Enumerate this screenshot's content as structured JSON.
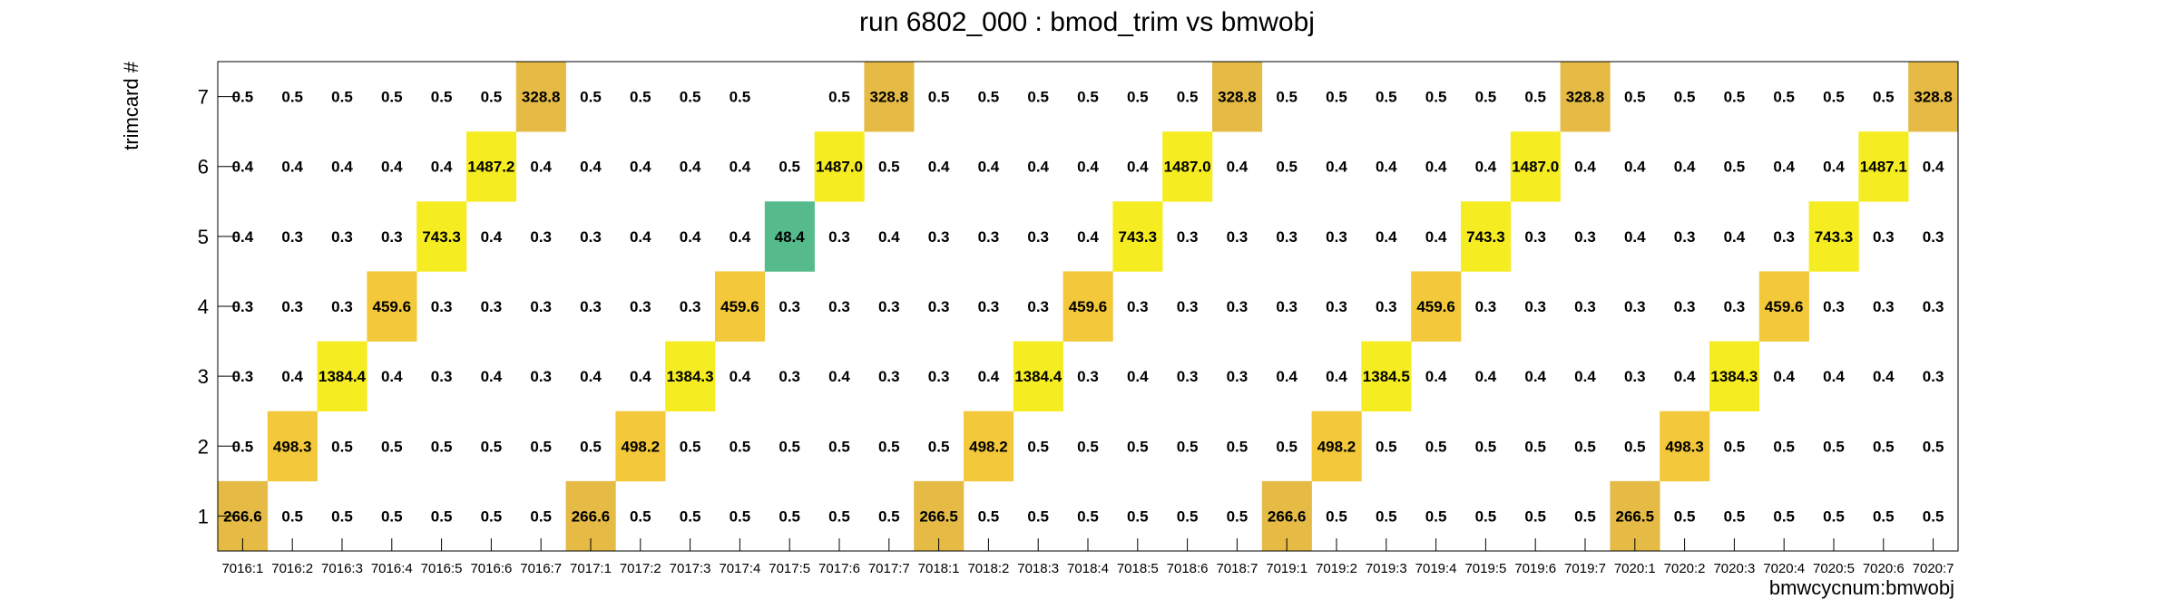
{
  "chart_data": {
    "type": "heatmap",
    "title": "run 6802_000 : bmod_trim vs bmwobj",
    "xlabel": "bmwcycnum:bmwobj",
    "ylabel": "trimcard #",
    "x_categories": [
      "7016:1",
      "7016:2",
      "7016:3",
      "7016:4",
      "7016:5",
      "7016:6",
      "7016:7",
      "7017:1",
      "7017:2",
      "7017:3",
      "7017:4",
      "7017:5",
      "7017:6",
      "7017:7",
      "7018:1",
      "7018:2",
      "7018:3",
      "7018:4",
      "7018:5",
      "7018:6",
      "7018:7",
      "7019:1",
      "7019:2",
      "7019:3",
      "7019:4",
      "7019:5",
      "7019:6",
      "7019:7",
      "7020:1",
      "7020:2",
      "7020:3",
      "7020:4",
      "7020:5",
      "7020:6",
      "7020:7"
    ],
    "y_categories": [
      "1",
      "2",
      "3",
      "4",
      "5",
      "6",
      "7"
    ],
    "values": [
      [
        "266.6",
        "0.5",
        "0.5",
        "0.5",
        "0.5",
        "0.5",
        "0.5",
        "266.6",
        "0.5",
        "0.5",
        "0.5",
        "0.5",
        "0.5",
        "0.5",
        "266.5",
        "0.5",
        "0.5",
        "0.5",
        "0.5",
        "0.5",
        "0.5",
        "266.6",
        "0.5",
        "0.5",
        "0.5",
        "0.5",
        "0.5",
        "0.5",
        "266.5",
        "0.5",
        "0.5",
        "0.5",
        "0.5",
        "0.5",
        "0.5"
      ],
      [
        "0.5",
        "498.3",
        "0.5",
        "0.5",
        "0.5",
        "0.5",
        "0.5",
        "0.5",
        "498.2",
        "0.5",
        "0.5",
        "0.5",
        "0.5",
        "0.5",
        "0.5",
        "498.2",
        "0.5",
        "0.5",
        "0.5",
        "0.5",
        "0.5",
        "0.5",
        "498.2",
        "0.5",
        "0.5",
        "0.5",
        "0.5",
        "0.5",
        "0.5",
        "498.3",
        "0.5",
        "0.5",
        "0.5",
        "0.5",
        "0.5"
      ],
      [
        "0.3",
        "0.4",
        "1384.4",
        "0.4",
        "0.3",
        "0.4",
        "0.3",
        "0.4",
        "0.4",
        "1384.3",
        "0.4",
        "0.3",
        "0.4",
        "0.3",
        "0.3",
        "0.4",
        "1384.4",
        "0.3",
        "0.4",
        "0.3",
        "0.3",
        "0.4",
        "0.4",
        "1384.5",
        "0.4",
        "0.4",
        "0.4",
        "0.4",
        "0.3",
        "0.4",
        "1384.3",
        "0.4",
        "0.4",
        "0.4",
        "0.3"
      ],
      [
        "0.3",
        "0.3",
        "0.3",
        "459.6",
        "0.3",
        "0.3",
        "0.3",
        "0.3",
        "0.3",
        "0.3",
        "459.6",
        "0.3",
        "0.3",
        "0.3",
        "0.3",
        "0.3",
        "0.3",
        "459.6",
        "0.3",
        "0.3",
        "0.3",
        "0.3",
        "0.3",
        "0.3",
        "459.6",
        "0.3",
        "0.3",
        "0.3",
        "0.3",
        "0.3",
        "0.3",
        "459.6",
        "0.3",
        "0.3",
        "0.3"
      ],
      [
        "0.4",
        "0.3",
        "0.3",
        "0.3",
        "743.3",
        "0.4",
        "0.3",
        "0.3",
        "0.4",
        "0.4",
        "0.4",
        "48.4",
        "0.3",
        "0.4",
        "0.3",
        "0.3",
        "0.3",
        "0.4",
        "743.3",
        "0.3",
        "0.3",
        "0.3",
        "0.3",
        "0.4",
        "0.4",
        "743.3",
        "0.3",
        "0.3",
        "0.4",
        "0.3",
        "0.4",
        "0.3",
        "743.3",
        "0.3",
        "0.3"
      ],
      [
        "0.4",
        "0.4",
        "0.4",
        "0.4",
        "0.4",
        "1487.2",
        "0.4",
        "0.4",
        "0.4",
        "0.4",
        "0.4",
        "0.5",
        "1487.0",
        "0.5",
        "0.4",
        "0.4",
        "0.4",
        "0.4",
        "0.4",
        "1487.0",
        "0.4",
        "0.5",
        "0.4",
        "0.4",
        "0.4",
        "0.4",
        "1487.0",
        "0.4",
        "0.4",
        "0.4",
        "0.5",
        "0.4",
        "0.4",
        "1487.1",
        "0.4"
      ],
      [
        "0.5",
        "0.5",
        "0.5",
        "0.5",
        "0.5",
        "0.5",
        "328.8",
        "0.5",
        "0.5",
        "0.5",
        "0.5",
        "",
        "0.5",
        "328.8",
        "0.5",
        "0.5",
        "0.5",
        "0.5",
        "0.5",
        "0.5",
        "328.8",
        "0.5",
        "0.5",
        "0.5",
        "0.5",
        "0.5",
        "0.5",
        "328.8",
        "0.5",
        "0.5",
        "0.5",
        "0.5",
        "0.5",
        "0.5",
        "328.8"
      ]
    ],
    "colors": {
      "low": "#55bb8d",
      "mid": "#e5bb46",
      "mid_high": "#f3c83a",
      "high": "#f5ed22",
      "frame": "#000000",
      "background": "#ffffff"
    },
    "grid": false,
    "legend": "none"
  }
}
